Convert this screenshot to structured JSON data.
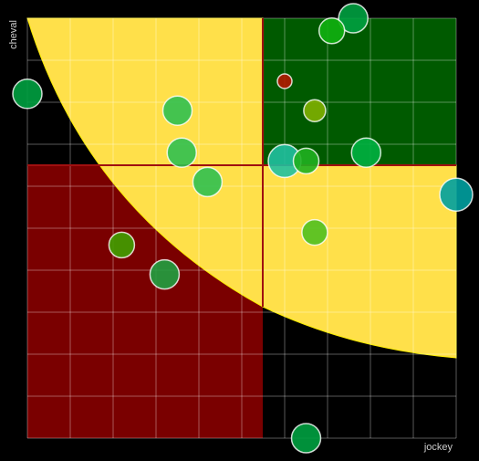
{
  "chart_data": {
    "type": "bubble",
    "x_label": "jockey",
    "y_label": "cheval",
    "xlim": [
      0,
      100
    ],
    "ylim": [
      0,
      100
    ],
    "xticks": [
      0,
      10,
      20,
      30,
      40,
      50,
      60,
      70,
      80,
      90,
      100
    ],
    "yticks": [
      0,
      10,
      20,
      30,
      40,
      50,
      60,
      70,
      80,
      90,
      100
    ],
    "grid": true,
    "series": [
      {
        "x": [
          76,
          71,
          0,
          60,
          67,
          35,
          36,
          60,
          65,
          79,
          42,
          100,
          67,
          22,
          32,
          65
        ],
        "values": [
          100,
          97,
          82,
          85,
          78,
          78,
          68,
          66,
          66,
          68,
          61,
          58,
          49,
          46,
          39,
          0
        ],
        "sizes": [
          16,
          14,
          16,
          8,
          12,
          16,
          16,
          18,
          14,
          16,
          16,
          18,
          14,
          14,
          16,
          16
        ],
        "colors": [
          "#00a040",
          "#10b010",
          "#00a040",
          "#b01800",
          "#80b000",
          "#30c050",
          "#30c050",
          "#20c0a0",
          "#20b020",
          "#00b040",
          "#30c050",
          "#00a0a0",
          "#50c020",
          "#40a000",
          "#20a040",
          "#00a040"
        ]
      }
    ]
  }
}
